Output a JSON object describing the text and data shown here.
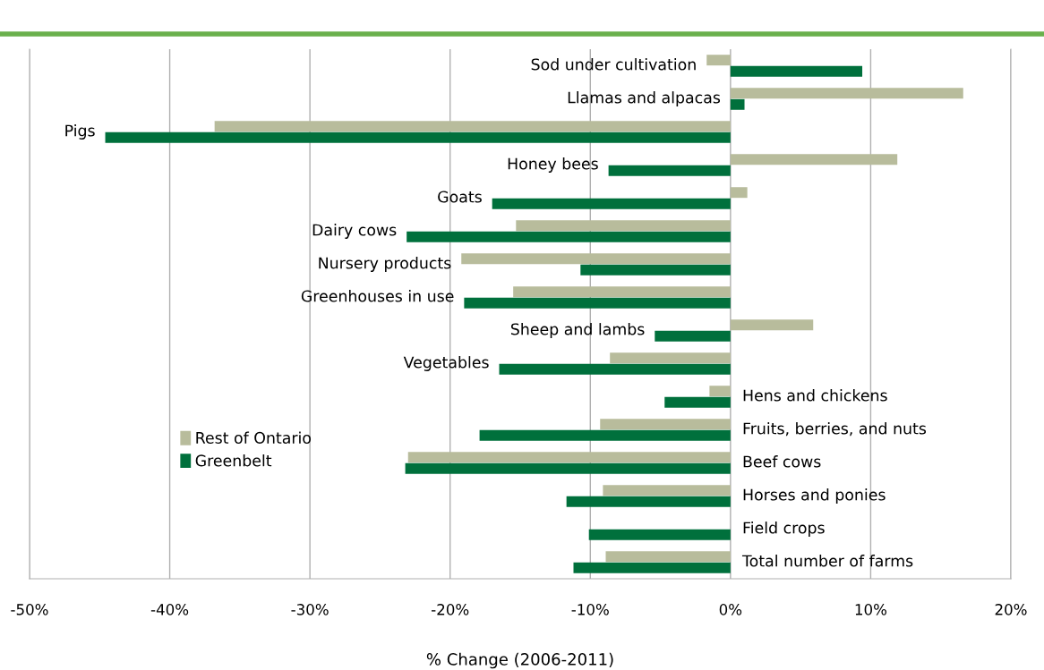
{
  "chart_data": {
    "type": "bar",
    "orientation": "horizontal",
    "xlabel": "% Change (2006-2011)",
    "categories": [
      "Sod under cultivation",
      "Llamas and alpacas",
      "Pigs",
      "Honey bees",
      "Goats",
      "Dairy cows",
      "Nursery products",
      "Greenhouses in use",
      "Sheep and lambs",
      "Vegetables",
      "Hens and chickens",
      "Fruits, berries, and nuts",
      "Beef cows",
      "Horses and ponies",
      "Field crops",
      "Total number of farms"
    ],
    "series": [
      {
        "name": "Rest of Ontario",
        "color": "#b8bc9c",
        "values": [
          -1.7,
          16.6,
          -36.8,
          11.9,
          1.2,
          -15.3,
          -19.2,
          -15.5,
          5.9,
          -8.6,
          -1.5,
          -9.3,
          -23.0,
          -9.1,
          null,
          -8.9
        ]
      },
      {
        "name": "Greenbelt",
        "color": "#00703c",
        "values": [
          9.4,
          1.0,
          -44.6,
          -8.7,
          -17.0,
          -23.1,
          -10.7,
          -19.0,
          -5.4,
          -16.5,
          -4.7,
          -17.9,
          -23.2,
          -11.7,
          -10.1,
          -11.2
        ]
      }
    ],
    "xlim": [
      -50,
      20
    ],
    "xticks": [
      {
        "value": -50,
        "label": "-50%"
      },
      {
        "value": -40,
        "label": "-40%"
      },
      {
        "value": -30,
        "label": "-30%"
      },
      {
        "value": -20,
        "label": "-20%"
      },
      {
        "value": -10,
        "label": "-10%"
      },
      {
        "value": 0,
        "label": "0%"
      },
      {
        "value": 10,
        "label": "10%"
      },
      {
        "value": 20,
        "label": "20%"
      }
    ],
    "grid": "x",
    "legend": "bottom left"
  }
}
